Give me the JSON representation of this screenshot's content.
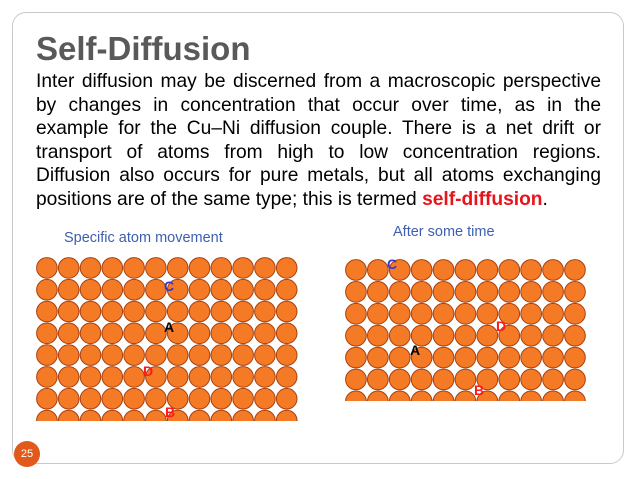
{
  "slide": {
    "title": "Self-Diffusion",
    "body_main": "Inter diffusion may be discerned from a macroscopic perspective by changes in concentration that occur over time, as in the example for the Cu–Ni diffusion couple. There is a net drift or  transport of atoms from high to low concentration regions. Diffusion also occurs for pure metals, but all atoms exchanging positions are of the same type; this is termed ",
    "body_keyword": "self-diffusion",
    "body_end": ".",
    "slide_number": "25",
    "colors": {
      "atom_fill": "#f47a26",
      "atom_stroke": "#a94010",
      "label_blue": "#3a36c8",
      "label_red": "#ff1a1a",
      "badge": "#e05a1c"
    }
  },
  "figures": {
    "left": {
      "caption": "Specific atom movement",
      "labels": {
        "C": "C",
        "A": "A",
        "D": "D",
        "B": "B"
      }
    },
    "right": {
      "caption": "After some time",
      "labels": {
        "C": "C",
        "A": "A",
        "D": "D",
        "B": "B"
      }
    }
  }
}
